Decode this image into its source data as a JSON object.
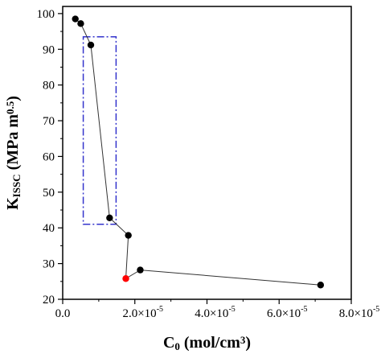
{
  "chart_data": {
    "type": "scatter",
    "title": "",
    "xlabel": {
      "base": "C",
      "sub": "0",
      "rest": " (mol/cm",
      "sup": "3",
      "close": ")"
    },
    "ylabel": {
      "base": "K",
      "sub": "ISSC",
      "rest": " (MPa m",
      "sup": "0.5",
      "close": ")"
    },
    "xlim": [
      0,
      8e-05
    ],
    "ylim": [
      20,
      102
    ],
    "x_ticks": [
      {
        "value": 0,
        "label": "0.0"
      },
      {
        "value": 2e-05,
        "label": "2.0×10"
      },
      {
        "value": 4e-05,
        "label": "4.0×10"
      },
      {
        "value": 6e-05,
        "label": "6.0×10"
      },
      {
        "value": 8e-05,
        "label": "8.0×10"
      }
    ],
    "x_tick_exponent": "-5",
    "y_ticks": [
      20,
      30,
      40,
      50,
      60,
      70,
      80,
      90,
      100
    ],
    "grid": false,
    "legend": "none",
    "series": [
      {
        "points": [
          {
            "x": 3.5e-06,
            "y": 98.5
          },
          {
            "x": 5e-06,
            "y": 97.2
          },
          {
            "x": 7.8e-06,
            "y": 91.2
          },
          {
            "x": 1.3e-05,
            "y": 42.8
          },
          {
            "x": 1.82e-05,
            "y": 37.9
          },
          {
            "x": 1.75e-05,
            "y": 25.8
          },
          {
            "x": 2.15e-05,
            "y": 28.2
          },
          {
            "x": 7.15e-05,
            "y": 24.0
          }
        ],
        "highlight_index": 5,
        "line_color": "#333333",
        "marker_color": "#000000",
        "highlight_color": "#ff0000"
      }
    ],
    "annotation_box": {
      "x0": 5.7e-06,
      "x1": 1.48e-05,
      "y0": 41.0,
      "y1": 93.5,
      "color": "#3333cc",
      "style": "dash-dot"
    }
  }
}
